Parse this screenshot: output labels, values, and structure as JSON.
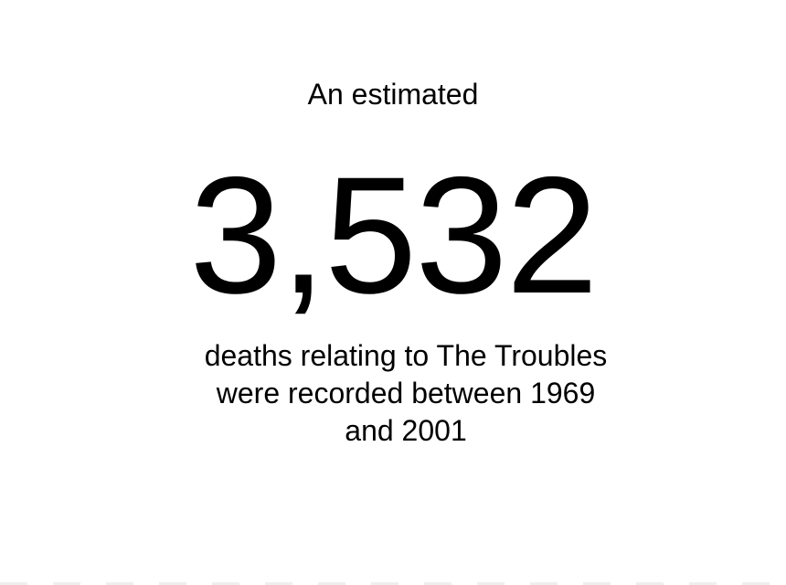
{
  "stat": {
    "intro": "An estimated",
    "number": "3,532",
    "caption_lines": [
      "deaths relating to The Troubles",
      "were recorded between 1969",
      "and 2001"
    ]
  }
}
